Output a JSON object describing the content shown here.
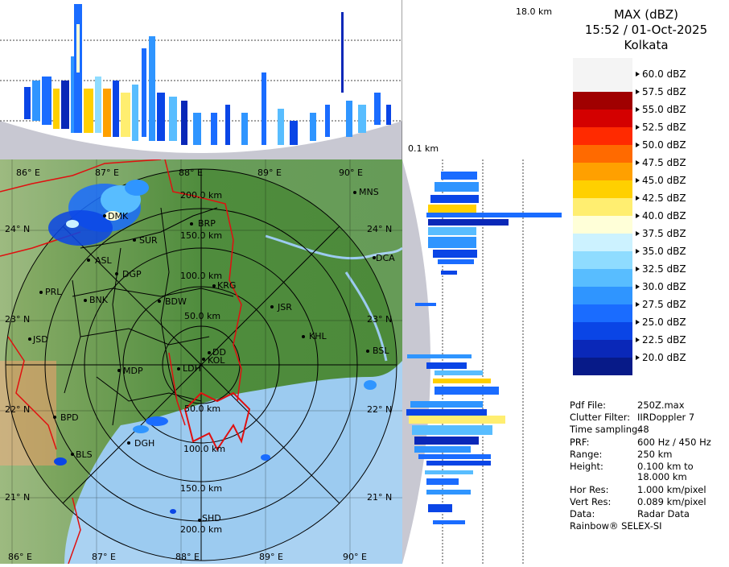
{
  "legend": {
    "title": "MAX (dBZ)",
    "time": "15:52 / 01-Oct-2025",
    "station": "Kolkata",
    "scale": [
      {
        "label": "60.0 dBZ",
        "color": ""
      },
      {
        "label": "57.5 dBZ",
        "color": "#a00000"
      },
      {
        "label": "55.0 dBZ",
        "color": "#d40000"
      },
      {
        "label": "52.5 dBZ",
        "color": "#ff2a00"
      },
      {
        "label": "50.0 dBZ",
        "color": "#ff6a00"
      },
      {
        "label": "47.5 dBZ",
        "color": "#ffa000"
      },
      {
        "label": "45.0 dBZ",
        "color": "#ffd000"
      },
      {
        "label": "42.5 dBZ",
        "color": "#ffee70"
      },
      {
        "label": "40.0 dBZ",
        "color": "#ffffd8"
      },
      {
        "label": "37.5 dBZ",
        "color": "#ccf2ff"
      },
      {
        "label": "35.0 dBZ",
        "color": "#8fdcff"
      },
      {
        "label": "32.5 dBZ",
        "color": "#58bdff"
      },
      {
        "label": "30.0 dBZ",
        "color": "#2f95ff"
      },
      {
        "label": "27.5 dBZ",
        "color": "#1a6cff"
      },
      {
        "label": "25.0 dBZ",
        "color": "#0a45e6"
      },
      {
        "label": "22.5 dBZ",
        "color": "#0a28b8"
      },
      {
        "label": "20.0 dBZ",
        "color": "#071a88"
      }
    ]
  },
  "info": [
    {
      "key": "Pdf File:",
      "value": "250Z.max"
    },
    {
      "key": "Clutter Filter:",
      "value": "IIRDoppler 7"
    },
    {
      "key": "Time sampling:",
      "value": "48"
    },
    {
      "key": "PRF:",
      "value": "600 Hz / 450 Hz"
    },
    {
      "key": "Range:",
      "value": "250 km"
    },
    {
      "key": "Height:",
      "value": "0.100 km to"
    },
    {
      "key": "",
      "value": "18.000 km"
    },
    {
      "key": "Hor Res:",
      "value": "1.000 km/pixel"
    },
    {
      "key": "Vert Res:",
      "value": "0.089 km/pixel"
    },
    {
      "key": "Data:",
      "value": "Radar Data"
    }
  ],
  "footer": "Rainbow® SELEX-SI",
  "profile": {
    "top_height": "18.0 km",
    "bottom_height": "0.1 km"
  },
  "map": {
    "lon_labels_top": [
      "86° E",
      "87° E",
      "88° E",
      "89° E",
      "90° E"
    ],
    "lon_labels_bottom": [
      "86° E",
      "87° E",
      "88° E",
      "89° E",
      "90° E"
    ],
    "lat_labels_left": [
      "24° N",
      "23° N",
      "22° N",
      "21° N"
    ],
    "lat_labels_right": [
      "24° N",
      "23° N",
      "22° N",
      "21° N"
    ],
    "range_rings": [
      "50.0 km",
      "100.0 km",
      "150.0 km",
      "200.0 km"
    ],
    "range_rings_south": [
      "50.0 km",
      "100.0 km",
      "150.0 km",
      "200.0 km"
    ],
    "cities": [
      "MNS",
      "BRP",
      "DMK",
      "SUR",
      "DCA",
      "ASL",
      "DGP",
      "KRG",
      "PRL",
      "BNK",
      "BDW",
      "JSR",
      "KHL",
      "JSD",
      "DD",
      "KOL",
      "BSL",
      "MDP",
      "LDH",
      "BPD",
      "DGH",
      "BLS",
      "SHD"
    ]
  },
  "colors": {
    "land": "#5f9a46",
    "sea": "#9ccbf0",
    "border": "#e01010",
    "panel_bg": "#c8c8d2"
  }
}
